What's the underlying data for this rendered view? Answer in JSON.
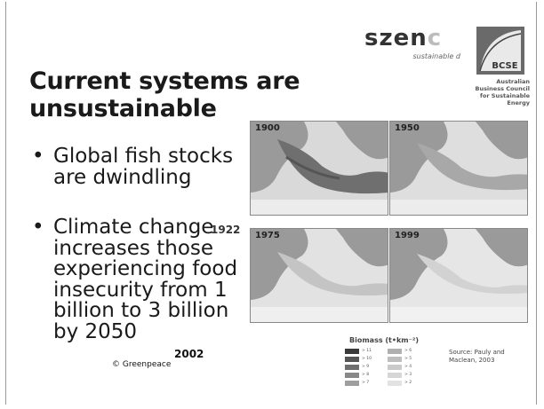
{
  "slide": {
    "title_line1": "Current systems are",
    "title_line2": "unsustainable",
    "bullets": [
      {
        "text": "Global fish stocks are dwindling"
      },
      {
        "text": "Climate change increases those experiencing food insecurity from 1 billion to 3 billion by 2050"
      }
    ],
    "sup_note": "1922",
    "year_note": "2002",
    "copyright": "© Greenpeace"
  },
  "logos": {
    "szenc_main": "szen",
    "szenc_fade": "c",
    "szenc_tag": "sustainable d",
    "bcse_emblem": "BCSE",
    "bcse_lines": [
      "Australian",
      "Business Council",
      "for Sustainable",
      "Energy"
    ]
  },
  "maps": [
    {
      "year": "1900"
    },
    {
      "year": "1950"
    },
    {
      "year": "1975"
    },
    {
      "year": "1999"
    }
  ],
  "legend": {
    "title": "Biomass (t•km⁻²)",
    "left_labels": [
      "> 11",
      "> 10",
      "> 9",
      "> 8",
      "> 7"
    ],
    "right_labels": [
      "> 6",
      "> 5",
      "> 4",
      "> 3",
      "> 2"
    ]
  },
  "source": {
    "line1": "Source: Pauly and",
    "line2": "Maclean, 2003"
  }
}
